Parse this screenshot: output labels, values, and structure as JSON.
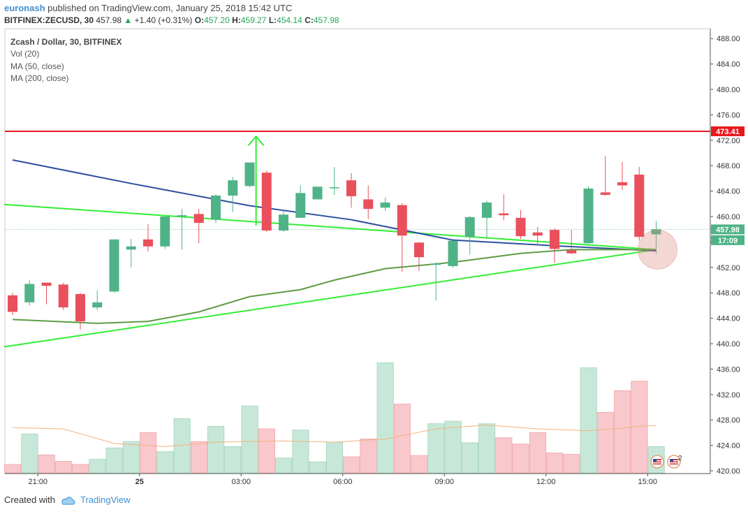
{
  "header": {
    "user": "euronash",
    "published": "published on TradingView.com, January 25, 2018 15:42 UTC",
    "symbol": "BITFINEX:ZECUSD, 30",
    "price": "457.98",
    "change": "+1.40 (+0.31%)",
    "o_label": "O:",
    "o": "457.20",
    "h_label": "H:",
    "h": "459.27",
    "l_label": "L:",
    "l": "454.14",
    "c_label": "C:",
    "c": "457.98"
  },
  "legend": {
    "title": "Zcash / Dollar, 30, BITFINEX",
    "vol": "Vol (20)",
    "ma50": "MA (50, close)",
    "ma200": "MA (200, close)"
  },
  "price_tags": {
    "resistance": "473.41",
    "last": "457.98",
    "countdown": "17:09"
  },
  "badge_count": "2",
  "footer": {
    "created": "Created with",
    "brand": "TradingView"
  },
  "colors": {
    "up": "#4fb387",
    "down": "#e9505c",
    "ma50": "#2e4fa0",
    "ma200": "#5e9c44",
    "trend": "#33ee33",
    "resistance": "#e8191e"
  },
  "chart_data": {
    "type": "candlestick",
    "title": "Zcash / Dollar, 30, BITFINEX",
    "ylim": [
      419.5,
      490
    ],
    "y_ticks": [
      "420.00",
      "424.00",
      "428.00",
      "432.00",
      "436.00",
      "440.00",
      "444.00",
      "448.00",
      "452.00",
      "456.00",
      "460.00",
      "464.00",
      "468.00",
      "472.00",
      "476.00",
      "480.00",
      "484.00",
      "488.00"
    ],
    "x_ticks": [
      {
        "label": "21:00",
        "bar": 1
      },
      {
        "label": "25",
        "bar": 7
      },
      {
        "label": "03:00",
        "bar": 13
      },
      {
        "label": "06:00",
        "bar": 19
      },
      {
        "label": "09:00",
        "bar": 25
      },
      {
        "label": "12:00",
        "bar": 31
      },
      {
        "label": "15:00",
        "bar": 37
      }
    ],
    "candles": [
      {
        "o": 447.6,
        "h": 448.0,
        "l": 444.5,
        "c": 445.0
      },
      {
        "o": 446.5,
        "h": 450.0,
        "l": 446.0,
        "c": 449.4
      },
      {
        "o": 449.6,
        "h": 449.6,
        "l": 446.2,
        "c": 449.1
      },
      {
        "o": 449.3,
        "h": 449.6,
        "l": 445.3,
        "c": 445.7
      },
      {
        "o": 447.8,
        "h": 448.0,
        "l": 442.2,
        "c": 443.5
      },
      {
        "o": 445.7,
        "h": 448.4,
        "l": 445.3,
        "c": 446.5
      },
      {
        "o": 448.2,
        "h": 456.4,
        "l": 448.0,
        "c": 456.4
      },
      {
        "o": 454.8,
        "h": 456.5,
        "l": 452.0,
        "c": 455.3
      },
      {
        "o": 456.4,
        "h": 458.8,
        "l": 454.5,
        "c": 455.3
      },
      {
        "o": 455.3,
        "h": 460.0,
        "l": 454.9,
        "c": 460.0
      },
      {
        "o": 460.0,
        "h": 461.2,
        "l": 454.8,
        "c": 460.2
      },
      {
        "o": 460.4,
        "h": 461.2,
        "l": 455.8,
        "c": 459.0
      },
      {
        "o": 459.5,
        "h": 463.5,
        "l": 459.0,
        "c": 463.3
      },
      {
        "o": 463.3,
        "h": 466.2,
        "l": 460.7,
        "c": 465.7
      },
      {
        "o": 464.8,
        "h": 468.5,
        "l": 464.6,
        "c": 468.5
      },
      {
        "o": 466.9,
        "h": 467.2,
        "l": 457.6,
        "c": 457.8
      },
      {
        "o": 457.8,
        "h": 461.0,
        "l": 457.6,
        "c": 460.3
      },
      {
        "o": 459.8,
        "h": 464.9,
        "l": 459.8,
        "c": 463.7
      },
      {
        "o": 462.7,
        "h": 464.7,
        "l": 462.7,
        "c": 464.7
      },
      {
        "o": 464.6,
        "h": 467.8,
        "l": 463.4,
        "c": 464.6
      },
      {
        "o": 465.7,
        "h": 466.8,
        "l": 461.4,
        "c": 463.2
      },
      {
        "o": 462.7,
        "h": 464.9,
        "l": 459.6,
        "c": 461.2
      },
      {
        "o": 461.4,
        "h": 463.0,
        "l": 460.9,
        "c": 462.2
      },
      {
        "o": 461.8,
        "h": 462.1,
        "l": 451.3,
        "c": 457.0
      },
      {
        "o": 455.9,
        "h": 456.0,
        "l": 451.4,
        "c": 453.6
      },
      {
        "o": 452.4,
        "h": 452.8,
        "l": 446.8,
        "c": 452.6
      },
      {
        "o": 452.2,
        "h": 456.2,
        "l": 451.9,
        "c": 456.2
      },
      {
        "o": 456.8,
        "h": 460.1,
        "l": 454.0,
        "c": 459.9
      },
      {
        "o": 459.8,
        "h": 462.5,
        "l": 456.5,
        "c": 462.2
      },
      {
        "o": 460.5,
        "h": 463.5,
        "l": 459.4,
        "c": 460.2
      },
      {
        "o": 459.8,
        "h": 461.0,
        "l": 456.5,
        "c": 456.9
      },
      {
        "o": 457.5,
        "h": 458.4,
        "l": 455.4,
        "c": 457.0
      },
      {
        "o": 457.9,
        "h": 458.1,
        "l": 452.7,
        "c": 454.9
      },
      {
        "o": 454.7,
        "h": 457.9,
        "l": 454.1,
        "c": 454.2
      },
      {
        "o": 455.8,
        "h": 464.8,
        "l": 455.7,
        "c": 464.4
      },
      {
        "o": 463.8,
        "h": 469.5,
        "l": 463.3,
        "c": 463.4
      },
      {
        "o": 465.4,
        "h": 468.6,
        "l": 464.2,
        "c": 464.9
      },
      {
        "o": 466.6,
        "h": 467.8,
        "l": 456.2,
        "c": 456.8
      },
      {
        "o": 457.2,
        "h": 459.3,
        "l": 454.1,
        "c": 458.0
      }
    ],
    "volume": [
      421.0,
      425.8,
      422.5,
      421.5,
      421.0,
      421.8,
      423.6,
      424.6,
      426.0,
      423.0,
      428.2,
      424.6,
      427.0,
      423.8,
      430.2,
      426.6,
      422.0,
      426.4,
      421.4,
      424.5,
      422.2,
      425.0,
      437.0,
      430.5,
      422.4,
      427.4,
      427.8,
      424.4,
      427.4,
      425.2,
      424.2,
      426.0,
      422.8,
      422.6,
      436.2,
      429.2,
      432.6,
      434.1,
      423.8
    ],
    "ma50": [
      [
        0,
        468.9
      ],
      [
        7,
        465.2
      ],
      [
        14,
        461.7
      ],
      [
        20,
        459.5
      ],
      [
        26,
        456.3
      ],
      [
        32,
        455.4
      ],
      [
        38,
        454.6
      ]
    ],
    "ma200": [
      [
        0,
        443.8
      ],
      [
        5,
        443.2
      ],
      [
        8,
        443.5
      ],
      [
        11,
        445.0
      ],
      [
        14,
        447.4
      ],
      [
        17,
        448.5
      ],
      [
        19,
        450.0
      ],
      [
        22,
        451.8
      ],
      [
        26,
        452.8
      ],
      [
        30,
        454.2
      ],
      [
        33,
        454.8
      ],
      [
        38,
        454.8
      ]
    ],
    "vol_ma": [
      [
        0,
        426.8
      ],
      [
        3,
        426.6
      ],
      [
        6,
        424.3
      ],
      [
        9,
        423.8
      ],
      [
        12,
        424.5
      ],
      [
        16,
        424.7
      ],
      [
        19,
        424.5
      ],
      [
        22,
        425.0
      ],
      [
        25,
        426.6
      ],
      [
        28,
        427.2
      ],
      [
        31,
        426.6
      ],
      [
        34,
        426.3
      ],
      [
        36,
        426.7
      ],
      [
        37,
        427.0
      ],
      [
        38,
        427.1
      ]
    ],
    "resistance": 473.41,
    "trendlines": [
      {
        "from": [
          -0.5,
          461.9
        ],
        "to": [
          38.0,
          454.8
        ]
      },
      {
        "from": [
          -0.5,
          439.5
        ],
        "to": [
          38.0,
          454.8
        ]
      }
    ],
    "arrow": {
      "bar": 14.5,
      "from": 458.6,
      "to": 472.6
    }
  }
}
